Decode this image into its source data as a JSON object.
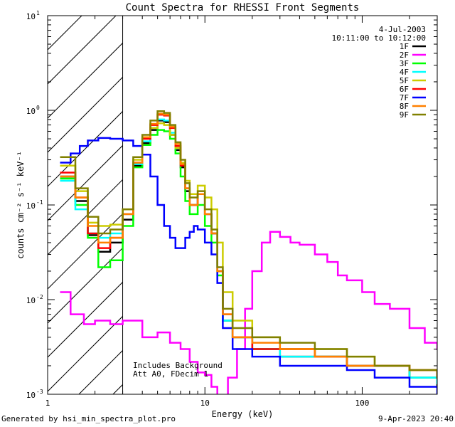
{
  "chart_data": {
    "type": "line",
    "title": "Count Spectra for RHESSI Front Segments",
    "xlabel": "Energy (keV)",
    "ylabel": "counts cm⁻² s⁻¹ keV⁻¹",
    "xscale": "log",
    "yscale": "log",
    "xlim": [
      1,
      300
    ],
    "ylim": [
      0.001,
      10
    ],
    "x_ticks": [
      {
        "value": 1,
        "label": "1"
      },
      {
        "value": 10,
        "label": "10"
      },
      {
        "value": 100,
        "label": "100"
      }
    ],
    "y_ticks": [
      {
        "value": 10,
        "base": "10",
        "exp": "1"
      },
      {
        "value": 1,
        "base": "10",
        "exp": "0"
      },
      {
        "value": 0.1,
        "base": "10",
        "exp": "-1"
      },
      {
        "value": 0.01,
        "base": "10",
        "exp": "-2"
      },
      {
        "value": 0.001,
        "base": "10",
        "exp": "-3"
      }
    ],
    "hatched_region_keV": [
      1,
      3
    ],
    "date": "4-Jul-2003",
    "time_range": "10:11:00 to 10:12:00",
    "annotations": [
      "Includes Background",
      "Att A0, FDecim 1"
    ],
    "series": [
      {
        "name": "1F",
        "color": "#000000",
        "points": [
          [
            1.2,
            0.2
          ],
          [
            1.5,
            0.11
          ],
          [
            1.8,
            0.048
          ],
          [
            2.1,
            0.032
          ],
          [
            2.5,
            0.04
          ],
          [
            3,
            0.07
          ],
          [
            3.5,
            0.26
          ],
          [
            4,
            0.45
          ],
          [
            4.5,
            0.62
          ],
          [
            5,
            0.78
          ],
          [
            5.5,
            0.75
          ],
          [
            6,
            0.55
          ],
          [
            6.5,
            0.38
          ],
          [
            7,
            0.25
          ],
          [
            7.5,
            0.14
          ],
          [
            8,
            0.1
          ],
          [
            9,
            0.13
          ],
          [
            10,
            0.08
          ],
          [
            11,
            0.05
          ],
          [
            12,
            0.02
          ],
          [
            13,
            0.006
          ],
          [
            15,
            0.004
          ],
          [
            20,
            0.003
          ],
          [
            30,
            0.0025
          ],
          [
            50,
            0.0025
          ],
          [
            80,
            0.002
          ],
          [
            120,
            0.002
          ],
          [
            200,
            0.0015
          ],
          [
            300,
            0.0012
          ]
        ]
      },
      {
        "name": "2F",
        "color": "#ff00ff",
        "points": [
          [
            1.2,
            0.012
          ],
          [
            1.4,
            0.007
          ],
          [
            1.7,
            0.0055
          ],
          [
            2,
            0.006
          ],
          [
            2.5,
            0.0055
          ],
          [
            3,
            0.006
          ],
          [
            4,
            0.004
          ],
          [
            5,
            0.0045
          ],
          [
            6,
            0.0035
          ],
          [
            7,
            0.003
          ],
          [
            8,
            0.0022
          ],
          [
            9,
            0.0017
          ],
          [
            10,
            0.0016
          ],
          [
            11,
            0.0012
          ],
          [
            12,
            0.0009
          ],
          [
            14,
            0.0015
          ],
          [
            16,
            0.003
          ],
          [
            18,
            0.008
          ],
          [
            20,
            0.02
          ],
          [
            23,
            0.04
          ],
          [
            26,
            0.052
          ],
          [
            30,
            0.046
          ],
          [
            35,
            0.04
          ],
          [
            40,
            0.038
          ],
          [
            50,
            0.03
          ],
          [
            60,
            0.025
          ],
          [
            70,
            0.018
          ],
          [
            80,
            0.016
          ],
          [
            100,
            0.012
          ],
          [
            120,
            0.009
          ],
          [
            150,
            0.008
          ],
          [
            200,
            0.005
          ],
          [
            250,
            0.0035
          ],
          [
            300,
            0.003
          ]
        ]
      },
      {
        "name": "3F",
        "color": "#00ff00",
        "points": [
          [
            1.2,
            0.19
          ],
          [
            1.5,
            0.1
          ],
          [
            1.8,
            0.045
          ],
          [
            2.1,
            0.022
          ],
          [
            2.5,
            0.026
          ],
          [
            3,
            0.06
          ],
          [
            3.5,
            0.25
          ],
          [
            4,
            0.43
          ],
          [
            4.5,
            0.55
          ],
          [
            5,
            0.62
          ],
          [
            5.5,
            0.6
          ],
          [
            6,
            0.5
          ],
          [
            6.5,
            0.35
          ],
          [
            7,
            0.2
          ],
          [
            7.5,
            0.11
          ],
          [
            8,
            0.08
          ],
          [
            9,
            0.1
          ],
          [
            10,
            0.06
          ],
          [
            11,
            0.04
          ],
          [
            12,
            0.018
          ],
          [
            13,
            0.006
          ],
          [
            15,
            0.004
          ],
          [
            20,
            0.003
          ],
          [
            30,
            0.003
          ],
          [
            50,
            0.0025
          ],
          [
            80,
            0.002
          ],
          [
            120,
            0.002
          ],
          [
            200,
            0.0015
          ],
          [
            300,
            0.0015
          ]
        ]
      },
      {
        "name": "4F",
        "color": "#00ffff",
        "points": [
          [
            1.2,
            0.18
          ],
          [
            1.5,
            0.09
          ],
          [
            1.8,
            0.05
          ],
          [
            2.1,
            0.045
          ],
          [
            2.5,
            0.05
          ],
          [
            3,
            0.08
          ],
          [
            3.5,
            0.27
          ],
          [
            4,
            0.47
          ],
          [
            4.5,
            0.65
          ],
          [
            5,
            0.8
          ],
          [
            5.5,
            0.78
          ],
          [
            6,
            0.58
          ],
          [
            6.5,
            0.4
          ],
          [
            7,
            0.26
          ],
          [
            7.5,
            0.15
          ],
          [
            8,
            0.1
          ],
          [
            9,
            0.13
          ],
          [
            10,
            0.08
          ],
          [
            11,
            0.05
          ],
          [
            12,
            0.02
          ],
          [
            13,
            0.006
          ],
          [
            15,
            0.004
          ],
          [
            20,
            0.003
          ],
          [
            30,
            0.0025
          ],
          [
            50,
            0.0025
          ],
          [
            80,
            0.002
          ],
          [
            120,
            0.002
          ],
          [
            200,
            0.0015
          ],
          [
            300,
            0.0013
          ]
        ]
      },
      {
        "name": "5F",
        "color": "#cccc00",
        "points": [
          [
            1.2,
            0.26
          ],
          [
            1.5,
            0.14
          ],
          [
            1.8,
            0.065
          ],
          [
            2.1,
            0.06
          ],
          [
            2.5,
            0.062
          ],
          [
            3,
            0.09
          ],
          [
            3.5,
            0.3
          ],
          [
            4,
            0.5
          ],
          [
            4.5,
            0.65
          ],
          [
            5,
            0.73
          ],
          [
            5.5,
            0.7
          ],
          [
            6,
            0.55
          ],
          [
            6.5,
            0.4
          ],
          [
            7,
            0.28
          ],
          [
            7.5,
            0.18
          ],
          [
            8,
            0.13
          ],
          [
            9,
            0.16
          ],
          [
            10,
            0.12
          ],
          [
            11,
            0.09
          ],
          [
            12,
            0.04
          ],
          [
            13,
            0.012
          ],
          [
            15,
            0.006
          ],
          [
            20,
            0.004
          ],
          [
            30,
            0.003
          ],
          [
            50,
            0.003
          ],
          [
            80,
            0.0025
          ],
          [
            120,
            0.002
          ],
          [
            200,
            0.0018
          ],
          [
            300,
            0.0015
          ]
        ]
      },
      {
        "name": "6F",
        "color": "#ff0000",
        "points": [
          [
            1.2,
            0.22
          ],
          [
            1.5,
            0.12
          ],
          [
            1.8,
            0.05
          ],
          [
            2.1,
            0.035
          ],
          [
            2.5,
            0.045
          ],
          [
            3,
            0.08
          ],
          [
            3.5,
            0.28
          ],
          [
            4,
            0.5
          ],
          [
            4.5,
            0.7
          ],
          [
            5,
            0.9
          ],
          [
            5.5,
            0.88
          ],
          [
            6,
            0.65
          ],
          [
            6.5,
            0.42
          ],
          [
            7,
            0.26
          ],
          [
            7.5,
            0.15
          ],
          [
            8,
            0.1
          ],
          [
            9,
            0.13
          ],
          [
            10,
            0.08
          ],
          [
            11,
            0.05
          ],
          [
            12,
            0.02
          ],
          [
            13,
            0.007
          ],
          [
            15,
            0.004
          ],
          [
            20,
            0.003
          ],
          [
            30,
            0.003
          ],
          [
            50,
            0.0025
          ],
          [
            80,
            0.002
          ],
          [
            120,
            0.002
          ],
          [
            200,
            0.0018
          ],
          [
            300,
            0.0015
          ]
        ]
      },
      {
        "name": "7F",
        "color": "#0000ff",
        "points": [
          [
            1.2,
            0.28
          ],
          [
            1.4,
            0.35
          ],
          [
            1.6,
            0.42
          ],
          [
            1.8,
            0.48
          ],
          [
            2.1,
            0.51
          ],
          [
            2.5,
            0.5
          ],
          [
            3,
            0.48
          ],
          [
            3.5,
            0.42
          ],
          [
            4,
            0.34
          ],
          [
            4.5,
            0.2
          ],
          [
            5,
            0.1
          ],
          [
            5.5,
            0.06
          ],
          [
            6,
            0.045
          ],
          [
            6.5,
            0.035
          ],
          [
            7,
            0.035
          ],
          [
            7.5,
            0.045
          ],
          [
            8,
            0.052
          ],
          [
            8.5,
            0.06
          ],
          [
            9,
            0.055
          ],
          [
            10,
            0.04
          ],
          [
            11,
            0.03
          ],
          [
            12,
            0.015
          ],
          [
            13,
            0.005
          ],
          [
            15,
            0.003
          ],
          [
            20,
            0.0025
          ],
          [
            30,
            0.002
          ],
          [
            50,
            0.002
          ],
          [
            80,
            0.0018
          ],
          [
            120,
            0.0015
          ],
          [
            200,
            0.0012
          ],
          [
            300,
            0.001
          ]
        ]
      },
      {
        "name": "8F",
        "color": "#ff8000",
        "points": [
          [
            1.2,
            0.2
          ],
          [
            1.5,
            0.12
          ],
          [
            1.8,
            0.06
          ],
          [
            2.1,
            0.04
          ],
          [
            2.5,
            0.045
          ],
          [
            3,
            0.08
          ],
          [
            3.5,
            0.28
          ],
          [
            4,
            0.52
          ],
          [
            4.5,
            0.72
          ],
          [
            5,
            0.92
          ],
          [
            5.5,
            0.9
          ],
          [
            6,
            0.67
          ],
          [
            6.5,
            0.44
          ],
          [
            7,
            0.27
          ],
          [
            7.5,
            0.15
          ],
          [
            8,
            0.1
          ],
          [
            9,
            0.13
          ],
          [
            10,
            0.08
          ],
          [
            11,
            0.05
          ],
          [
            12,
            0.02
          ],
          [
            13,
            0.007
          ],
          [
            15,
            0.004
          ],
          [
            20,
            0.0035
          ],
          [
            30,
            0.003
          ],
          [
            50,
            0.0025
          ],
          [
            80,
            0.002
          ],
          [
            120,
            0.002
          ],
          [
            200,
            0.0018
          ],
          [
            300,
            0.0015
          ]
        ]
      },
      {
        "name": "9F",
        "color": "#808000",
        "points": [
          [
            1.2,
            0.32
          ],
          [
            1.5,
            0.15
          ],
          [
            1.8,
            0.075
          ],
          [
            2.1,
            0.05
          ],
          [
            2.5,
            0.055
          ],
          [
            3,
            0.09
          ],
          [
            3.5,
            0.32
          ],
          [
            4,
            0.55
          ],
          [
            4.5,
            0.78
          ],
          [
            5,
            0.98
          ],
          [
            5.5,
            0.94
          ],
          [
            6,
            0.7
          ],
          [
            6.5,
            0.46
          ],
          [
            7,
            0.3
          ],
          [
            7.5,
            0.17
          ],
          [
            8,
            0.12
          ],
          [
            9,
            0.14
          ],
          [
            10,
            0.09
          ],
          [
            11,
            0.055
          ],
          [
            12,
            0.022
          ],
          [
            13,
            0.008
          ],
          [
            15,
            0.005
          ],
          [
            20,
            0.004
          ],
          [
            30,
            0.0035
          ],
          [
            50,
            0.003
          ],
          [
            80,
            0.0025
          ],
          [
            120,
            0.002
          ],
          [
            200,
            0.0018
          ],
          [
            300,
            0.0015
          ]
        ]
      }
    ]
  },
  "footer": {
    "left": "Generated by hsi_min_spectra_plot.pro",
    "right": "9-Apr-2023 20:40"
  }
}
